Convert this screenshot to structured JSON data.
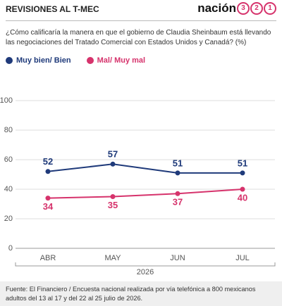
{
  "header": {
    "title": "REVISIONES AL T-MEC",
    "logo": {
      "text": "nación",
      "digits": [
        "3",
        "2",
        "1"
      ]
    }
  },
  "chart_data": {
    "type": "line",
    "title": "¿Cómo calificaría la manera en que el gobierno de Claudia Sheinbaum está llevando las negociaciones del Tratado Comercial con Estados Unidos y Canadá? (%)",
    "categories": [
      "ABR",
      "MAY",
      "JUN",
      "JUL"
    ],
    "x_group_label": "2026",
    "series": [
      {
        "name": "Muy bien/ Bien",
        "color": "#1f3a7a",
        "values": [
          52,
          57,
          51,
          51
        ]
      },
      {
        "name": "Mal/ Muy mal",
        "color": "#d6336c",
        "values": [
          34,
          35,
          37,
          40
        ]
      }
    ],
    "ylim": [
      0,
      100
    ],
    "yticks": [
      0,
      20,
      40,
      60,
      80,
      100
    ],
    "grid": true
  },
  "source": "Fuente: El Financiero / Encuesta nacional realizada por vía telefónica a 800 mexicanos adultos del 13 al 17 y del 22 al 25 julio de 2026."
}
